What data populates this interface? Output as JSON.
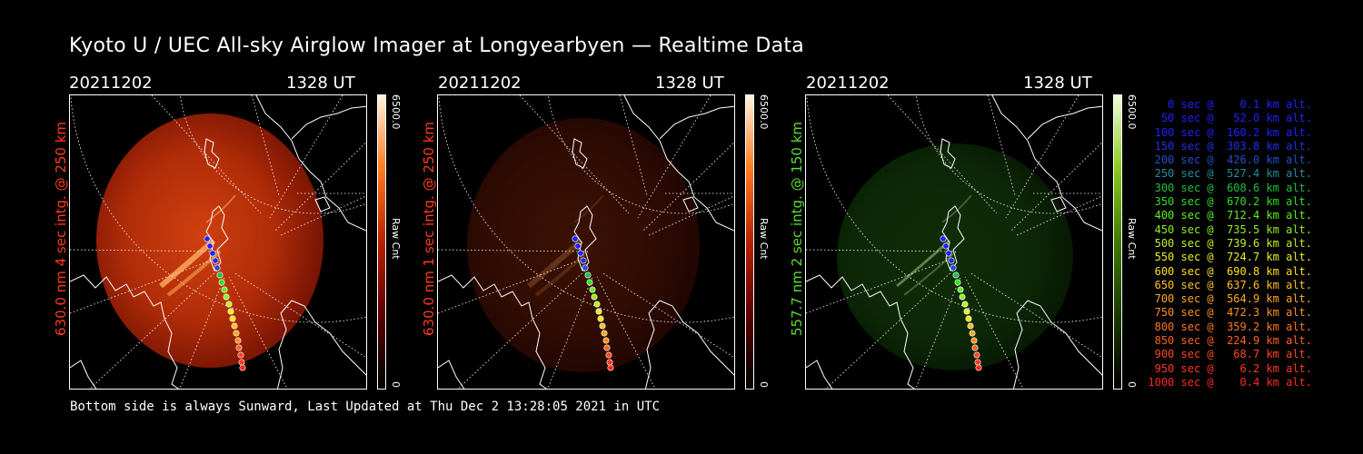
{
  "title": "Kyoto U / UEC All-sky Airglow Imager at Longyearbyen — Realtime Data",
  "footer": "Bottom side is always Sunward, Last Updated at Thu Dec  2 13:28:05 2021 in UTC",
  "panels": [
    {
      "date": "20211202",
      "time": "1328 UT",
      "label": "630.0 nm 4 sec intg. @ 250 km",
      "label_color": "#ff3a1a",
      "cbar_max": "6500.0",
      "cbar_min": "0",
      "cbar_unit": "Raw Cnt",
      "scheme": "red",
      "brightness": 1.0
    },
    {
      "date": "20211202",
      "time": "1328 UT",
      "label": "630.0 nm 1 sec intg. @ 250 km",
      "label_color": "#ff3a1a",
      "cbar_max": "6500.0",
      "cbar_min": "0",
      "cbar_unit": "Raw Cnt",
      "scheme": "red",
      "brightness": 0.28
    },
    {
      "date": "20211202",
      "time": "1328 UT",
      "label": "557.7 nm 2 sec intg. @ 150 km",
      "label_color": "#5adc32",
      "cbar_max": "6500.0",
      "cbar_min": "0",
      "cbar_unit": "Raw Cnt",
      "scheme": "green",
      "brightness": 0.5
    }
  ],
  "trajectory_legend": [
    {
      "text": "   0 sec @    0.1 km alt.",
      "color": "#2020ff"
    },
    {
      "text": "  50 sec @   52.0 km alt.",
      "color": "#2020ff"
    },
    {
      "text": " 100 sec @  160.2 km alt.",
      "color": "#2020ff"
    },
    {
      "text": " 150 sec @  303.8 km alt.",
      "color": "#2030e8"
    },
    {
      "text": " 200 sec @  426.0 km alt.",
      "color": "#2050d0"
    },
    {
      "text": " 250 sec @  527.4 km alt.",
      "color": "#1e90a0"
    },
    {
      "text": " 300 sec @  608.6 km alt.",
      "color": "#20c040"
    },
    {
      "text": " 350 sec @  670.2 km alt.",
      "color": "#30e020"
    },
    {
      "text": " 400 sec @  712.4 km alt.",
      "color": "#60f020"
    },
    {
      "text": " 450 sec @  735.5 km alt.",
      "color": "#90f020"
    },
    {
      "text": " 500 sec @  739.6 km alt.",
      "color": "#c0f020"
    },
    {
      "text": " 550 sec @  724.7 km alt.",
      "color": "#e8f020"
    },
    {
      "text": " 600 sec @  690.8 km alt.",
      "color": "#ffe020"
    },
    {
      "text": " 650 sec @  637.6 km alt.",
      "color": "#ffc020"
    },
    {
      "text": " 700 sec @  564.9 km alt.",
      "color": "#ffa820"
    },
    {
      "text": " 750 sec @  472.3 km alt.",
      "color": "#ff9020"
    },
    {
      "text": " 800 sec @  359.2 km alt.",
      "color": "#ff7820"
    },
    {
      "text": " 850 sec @  224.9 km alt.",
      "color": "#ff6020"
    },
    {
      "text": " 900 sec @   68.7 km alt.",
      "color": "#ff4820"
    },
    {
      "text": " 950 sec @    6.2 km alt.",
      "color": "#ff3820"
    },
    {
      "text": "1000 sec @    0.4 km alt.",
      "color": "#ff2820"
    }
  ]
}
